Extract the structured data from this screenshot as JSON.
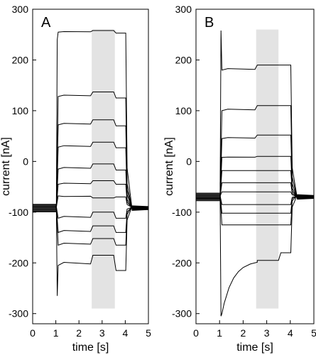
{
  "chart_data": [
    {
      "type": "line",
      "panel_label": "A",
      "xlabel": "time [s]",
      "ylabel": "current [nA]",
      "xlim": [
        0,
        5
      ],
      "ylim": [
        -320,
        300
      ],
      "xticks": [
        0,
        1,
        2,
        3,
        4,
        5
      ],
      "yticks": [
        -300,
        -200,
        -100,
        0,
        100,
        200,
        300
      ],
      "highlight_band": {
        "x": [
          2.55,
          3.55
        ]
      },
      "baseline": -92,
      "series": [
        {
          "plateau": [
            255,
            258,
            253
          ],
          "start_peak": 240
        },
        {
          "plateau": [
            128,
            137,
            125
          ]
        },
        {
          "plateau": [
            72,
            82,
            70
          ]
        },
        {
          "plateau": [
            28,
            38,
            27
          ]
        },
        {
          "plateau": [
            -15,
            -5,
            -17
          ]
        },
        {
          "plateau": [
            -45,
            -38,
            -45
          ]
        },
        {
          "plateau": [
            -68,
            -72,
            -70
          ]
        },
        {
          "plateau": [
            -112,
            -100,
            -112
          ]
        },
        {
          "plateau": [
            -140,
            -127,
            -140
          ]
        },
        {
          "plateau": [
            -165,
            -152,
            -165
          ]
        },
        {
          "plateau": [
            -205,
            -185,
            -215
          ],
          "start_peak": -265
        }
      ]
    },
    {
      "type": "line",
      "panel_label": "B",
      "xlabel": "time [s]",
      "ylabel": "current [nA]",
      "xlim": [
        0,
        5
      ],
      "ylim": [
        -320,
        300
      ],
      "xticks": [
        0,
        1,
        2,
        3,
        4,
        5
      ],
      "yticks": [
        -300,
        -200,
        -100,
        0,
        100,
        200,
        300
      ],
      "highlight_band": {
        "x": [
          2.55,
          3.5
        ]
      },
      "baseline": -70,
      "series": [
        {
          "plateau": [
            180,
            190,
            190
          ],
          "start_peak": 258
        },
        {
          "plateau": [
            100,
            110,
            110
          ]
        },
        {
          "plateau": [
            45,
            52,
            52
          ]
        },
        {
          "plateau": [
            8,
            10,
            10
          ]
        },
        {
          "plateau": [
            -18,
            -18,
            -18
          ]
        },
        {
          "plateau": [
            -42,
            -42,
            -42
          ]
        },
        {
          "plateau": [
            -60,
            -60,
            -60
          ]
        },
        {
          "plateau": [
            -85,
            -85,
            -85
          ]
        },
        {
          "plateau": [
            -102,
            -102,
            -102
          ]
        },
        {
          "plateau": [
            -125,
            -125,
            -125
          ]
        },
        {
          "plateau": [
            -300,
            -195,
            -180
          ],
          "start_peak": -305
        }
      ]
    }
  ]
}
